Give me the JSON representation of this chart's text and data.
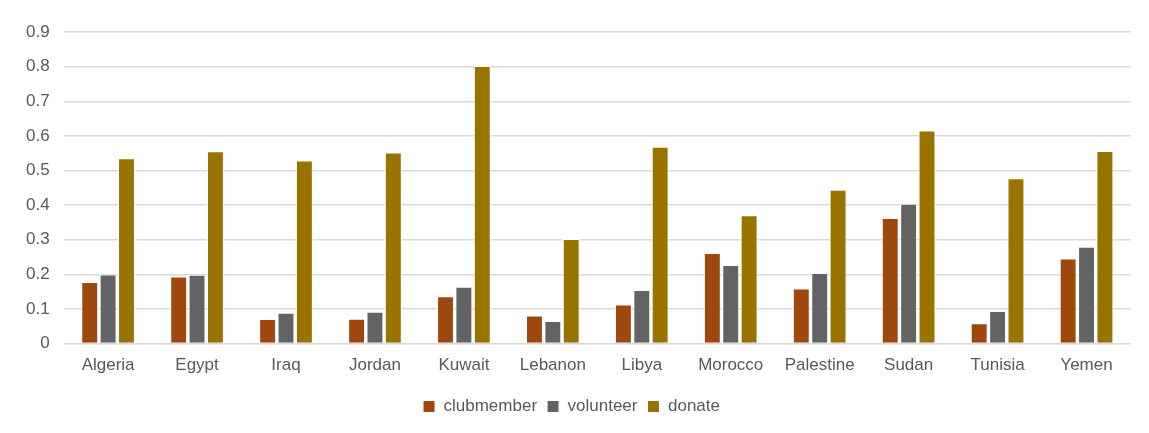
{
  "chart_data": {
    "type": "bar",
    "categories": [
      "Algeria",
      "Egypt",
      "Iraq",
      "Jordan",
      "Kuwait",
      "Lebanon",
      "Libya",
      "Morocco",
      "Palestine",
      "Sudan",
      "Tunisia",
      "Yemen"
    ],
    "series": [
      {
        "name": "clubmember",
        "color": "#9e480e",
        "values": [
          0.178,
          0.194,
          0.071,
          0.072,
          0.137,
          0.081,
          0.113,
          0.262,
          0.159,
          0.363,
          0.059,
          0.246
        ]
      },
      {
        "name": "volunteer",
        "color": "#636363",
        "values": [
          0.2,
          0.199,
          0.089,
          0.092,
          0.164,
          0.065,
          0.155,
          0.227,
          0.204,
          0.404,
          0.094,
          0.28
        ]
      },
      {
        "name": "donate",
        "color": "#997300",
        "values": [
          0.536,
          0.556,
          0.529,
          0.552,
          0.802,
          0.302,
          0.569,
          0.371,
          0.445,
          0.616,
          0.478,
          0.557
        ]
      }
    ],
    "ylim": [
      0,
      0.9
    ],
    "yticks": [
      0,
      0.1,
      0.2,
      0.3,
      0.4,
      0.5,
      0.6,
      0.7,
      0.8,
      0.9
    ],
    "grid": "y",
    "legend": "bottom"
  }
}
